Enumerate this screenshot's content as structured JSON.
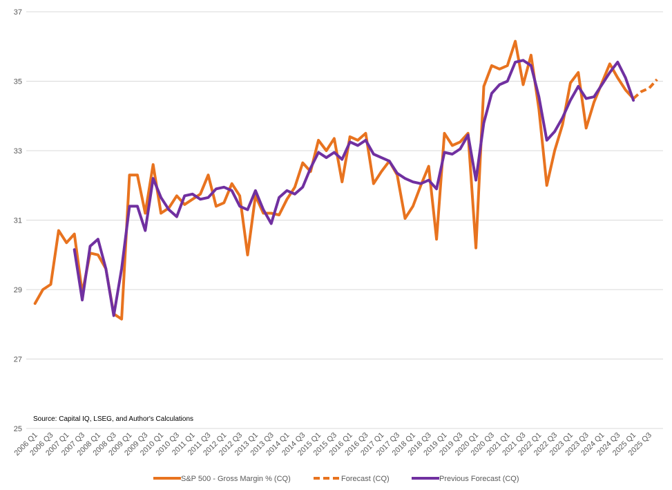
{
  "chart_data": {
    "type": "line",
    "title": "",
    "xlabel": "",
    "ylabel": "",
    "ylim": [
      25,
      37
    ],
    "yticks": [
      "25",
      "27",
      "29",
      "31",
      "33",
      "35",
      "37"
    ],
    "grid": "horizontal",
    "legend_position": "bottom",
    "source_note": "Source: Capital IQ, LSEG, and Author's Calculations",
    "x_tick_labels": [
      "2006 Q1",
      "2006 Q3",
      "2007 Q1",
      "2007 Q3",
      "2008 Q1",
      "2008 Q3",
      "2009 Q1",
      "2009 Q3",
      "2010 Q1",
      "2010 Q3",
      "2011 Q1",
      "2011 Q3",
      "2012 Q1",
      "2012 Q3",
      "2013 Q1",
      "2013 Q3",
      "2014 Q1",
      "2014 Q3",
      "2015 Q1",
      "2015 Q3",
      "2016 Q1",
      "2016 Q3",
      "2017 Q1",
      "2017 Q3",
      "2018 Q1",
      "2018 Q3",
      "2019 Q1",
      "2019 Q3",
      "2020 Q1",
      "2020 Q3",
      "2021 Q1",
      "2021 Q3",
      "2022 Q1",
      "2022 Q3",
      "2023 Q1",
      "2023 Q3",
      "2024 Q1",
      "2024 Q3",
      "2025 Q1",
      "2025 Q3"
    ],
    "categories": [
      "2006 Q1",
      "2006 Q2",
      "2006 Q3",
      "2006 Q4",
      "2007 Q1",
      "2007 Q2",
      "2007 Q3",
      "2007 Q4",
      "2008 Q1",
      "2008 Q2",
      "2008 Q3",
      "2008 Q4",
      "2009 Q1",
      "2009 Q2",
      "2009 Q3",
      "2009 Q4",
      "2010 Q1",
      "2010 Q2",
      "2010 Q3",
      "2010 Q4",
      "2011 Q1",
      "2011 Q2",
      "2011 Q3",
      "2011 Q4",
      "2012 Q1",
      "2012 Q2",
      "2012 Q3",
      "2012 Q4",
      "2013 Q1",
      "2013 Q2",
      "2013 Q3",
      "2013 Q4",
      "2014 Q1",
      "2014 Q2",
      "2014 Q3",
      "2014 Q4",
      "2015 Q1",
      "2015 Q2",
      "2015 Q3",
      "2015 Q4",
      "2016 Q1",
      "2016 Q2",
      "2016 Q3",
      "2016 Q4",
      "2017 Q1",
      "2017 Q2",
      "2017 Q3",
      "2017 Q4",
      "2018 Q1",
      "2018 Q2",
      "2018 Q3",
      "2018 Q4",
      "2019 Q1",
      "2019 Q2",
      "2019 Q3",
      "2019 Q4",
      "2020 Q1",
      "2020 Q2",
      "2020 Q3",
      "2020 Q4",
      "2021 Q1",
      "2021 Q2",
      "2021 Q3",
      "2021 Q4",
      "2022 Q1",
      "2022 Q2",
      "2022 Q3",
      "2022 Q4",
      "2023 Q1",
      "2023 Q2",
      "2023 Q3",
      "2023 Q4",
      "2024 Q1",
      "2024 Q2",
      "2024 Q3",
      "2024 Q4",
      "2025 Q1",
      "2025 Q2",
      "2025 Q3",
      "2025 Q4"
    ],
    "series": [
      {
        "name": "S&P 500  - Gross Margin % (CQ)",
        "color": "#E8731F",
        "style": "solid",
        "values": [
          28.6,
          29.0,
          29.15,
          30.7,
          30.35,
          30.6,
          28.9,
          30.05,
          30.0,
          29.6,
          28.3,
          28.15,
          32.3,
          32.3,
          31.2,
          32.6,
          31.2,
          31.35,
          31.7,
          31.45,
          31.6,
          31.75,
          32.3,
          31.4,
          31.5,
          32.05,
          31.7,
          30.0,
          31.7,
          31.2,
          31.2,
          31.15,
          31.6,
          31.95,
          32.65,
          32.4,
          33.3,
          33.0,
          33.35,
          32.1,
          33.4,
          33.3,
          33.5,
          32.05,
          32.4,
          32.7,
          32.3,
          31.05,
          31.4,
          32.0,
          32.55,
          30.45,
          33.5,
          33.15,
          33.25,
          33.5,
          30.2,
          34.85,
          35.45,
          35.35,
          35.45,
          36.15,
          34.9,
          35.75,
          34.2,
          32.0,
          33.0,
          33.75,
          34.95,
          35.25,
          33.65,
          34.4,
          34.95,
          35.5,
          35.1,
          34.75,
          34.5,
          null,
          null,
          null
        ]
      },
      {
        "name": "Forecast (CQ)",
        "color": "#E8731F",
        "style": "dashed",
        "values": [
          null,
          null,
          null,
          null,
          null,
          null,
          null,
          null,
          null,
          null,
          null,
          null,
          null,
          null,
          null,
          null,
          null,
          null,
          null,
          null,
          null,
          null,
          null,
          null,
          null,
          null,
          null,
          null,
          null,
          null,
          null,
          null,
          null,
          null,
          null,
          null,
          null,
          null,
          null,
          null,
          null,
          null,
          null,
          null,
          null,
          null,
          null,
          null,
          null,
          null,
          null,
          null,
          null,
          null,
          null,
          null,
          null,
          null,
          null,
          null,
          null,
          null,
          null,
          null,
          null,
          null,
          null,
          null,
          null,
          null,
          null,
          null,
          null,
          null,
          null,
          null,
          34.5,
          34.7,
          34.8,
          35.05
        ]
      },
      {
        "name": "Previous Forecast (CQ)",
        "color": "#7030A0",
        "style": "solid",
        "values": [
          null,
          null,
          null,
          null,
          null,
          30.15,
          28.7,
          30.25,
          30.45,
          29.6,
          28.25,
          29.6,
          31.4,
          31.4,
          30.7,
          32.2,
          31.65,
          31.3,
          31.1,
          31.7,
          31.75,
          31.6,
          31.65,
          31.9,
          31.95,
          31.85,
          31.4,
          31.3,
          31.85,
          31.3,
          30.9,
          31.65,
          31.85,
          31.75,
          31.95,
          32.5,
          32.95,
          32.8,
          32.95,
          32.75,
          33.25,
          33.15,
          33.3,
          32.9,
          32.8,
          32.7,
          32.35,
          32.2,
          32.1,
          32.05,
          32.15,
          31.9,
          32.95,
          32.9,
          33.05,
          33.45,
          32.15,
          33.8,
          34.65,
          34.9,
          35.0,
          35.55,
          35.6,
          35.45,
          34.55,
          33.3,
          33.55,
          33.95,
          34.45,
          34.85,
          34.5,
          34.55,
          34.9,
          35.25,
          35.55,
          35.1,
          34.45,
          null,
          null,
          null
        ]
      }
    ]
  }
}
